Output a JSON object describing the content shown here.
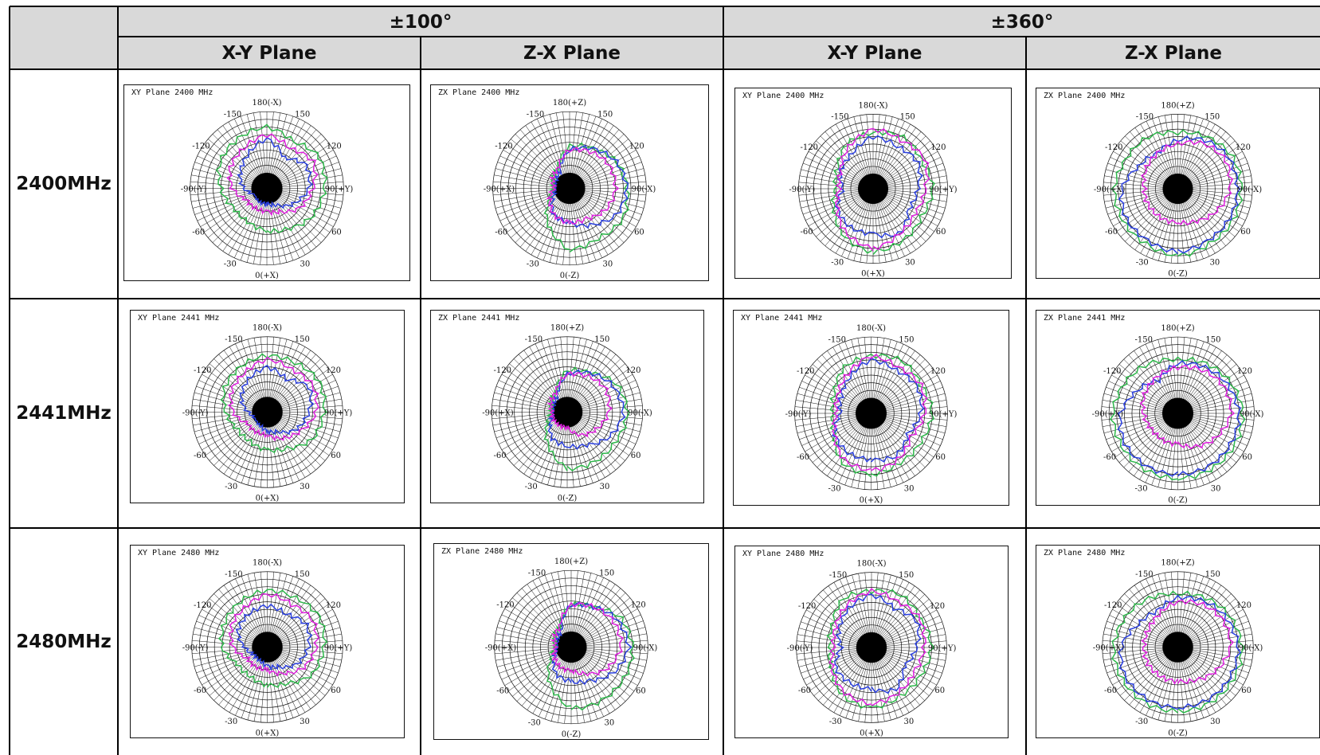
{
  "header": {
    "group_100": "±100°",
    "group_360": "±360°",
    "col_xy_1": "X-Y Plane",
    "col_zx_1": "Z-X Plane",
    "col_xy_2": "X-Y Plane",
    "col_zx_2": "Z-X Plane"
  },
  "rows": [
    "2400MHz",
    "2441MHz",
    "2480MHz"
  ],
  "colors": {
    "series_a": "#2db84a",
    "series_b": "#2a3fe0",
    "series_c": "#e020e0",
    "grid": "#111111",
    "border": "#000000"
  },
  "axis_labels": {
    "xy": {
      "top": "180(-X)",
      "bottom": "0(+X)",
      "left": "90(+Y)",
      "right": "-90(-Y)",
      "tl": "150",
      "tr": "-150",
      "ul": "120",
      "ur": "-120",
      "ll": "60",
      "lr": "-60",
      "bl": "30",
      "br": "-30"
    },
    "zx": {
      "top": "180(+Z)",
      "bottom": "0(-Z)",
      "left": "90(-X)",
      "right": "-90(+X)",
      "tl": "150",
      "tr": "-150",
      "ul": "120",
      "ur": "-120",
      "ll": "60",
      "lr": "-60",
      "bl": "30",
      "br": "-30"
    }
  },
  "chart_data": [
    {
      "type": "line",
      "plot": "polar",
      "title": "XY Plane 2400 MHz",
      "range": "±100°",
      "plane": "XY",
      "angles": [
        0,
        30,
        60,
        90,
        120,
        150,
        180,
        210,
        240,
        270,
        300,
        330
      ],
      "series": [
        {
          "values": [
            0.55,
            0.6,
            0.7,
            0.75,
            0.8,
            0.7,
            0.8,
            0.75,
            0.7,
            0.6,
            0.5,
            0.5
          ]
        },
        {
          "values": [
            0.2,
            0.25,
            0.4,
            0.55,
            0.6,
            0.45,
            0.65,
            0.5,
            0.4,
            0.3,
            0.15,
            0.2
          ]
        },
        {
          "values": [
            0.3,
            0.35,
            0.5,
            0.6,
            0.7,
            0.6,
            0.7,
            0.6,
            0.55,
            0.45,
            0.3,
            0.3
          ]
        }
      ]
    },
    {
      "type": "line",
      "plot": "polar",
      "title": "ZX Plane 2400 MHz",
      "range": "±100°",
      "plane": "ZX",
      "angles": [
        0,
        30,
        60,
        90,
        120,
        150,
        180,
        210,
        240,
        270,
        300,
        330
      ],
      "series": [
        {
          "values": [
            0.8,
            0.75,
            0.8,
            0.75,
            0.7,
            0.6,
            0.55,
            0.3,
            0.25,
            0.2,
            0.3,
            0.55
          ]
        },
        {
          "values": [
            0.45,
            0.55,
            0.7,
            0.75,
            0.7,
            0.6,
            0.5,
            0.25,
            0.2,
            0.15,
            0.25,
            0.4
          ]
        },
        {
          "values": [
            0.45,
            0.45,
            0.55,
            0.6,
            0.6,
            0.55,
            0.5,
            0.3,
            0.25,
            0.2,
            0.3,
            0.4
          ]
        }
      ]
    },
    {
      "type": "line",
      "plot": "polar",
      "title": "XY Plane 2400 MHz",
      "range": "±360°",
      "plane": "XY",
      "angles": [
        0,
        30,
        60,
        90,
        120,
        150,
        180,
        210,
        240,
        270,
        300,
        330
      ],
      "series": [
        {
          "values": [
            0.85,
            0.8,
            0.75,
            0.8,
            0.75,
            0.8,
            0.75,
            0.7,
            0.55,
            0.5,
            0.6,
            0.75
          ]
        },
        {
          "values": [
            0.6,
            0.7,
            0.55,
            0.6,
            0.7,
            0.65,
            0.7,
            0.55,
            0.5,
            0.4,
            0.55,
            0.6
          ]
        },
        {
          "values": [
            0.8,
            0.7,
            0.65,
            0.7,
            0.8,
            0.75,
            0.8,
            0.65,
            0.5,
            0.45,
            0.55,
            0.7
          ]
        }
      ]
    },
    {
      "type": "line",
      "plot": "polar",
      "title": "ZX Plane 2400 MHz",
      "range": "±360°",
      "plane": "ZX",
      "angles": [
        0,
        30,
        60,
        90,
        120,
        150,
        180,
        210,
        240,
        270,
        300,
        330
      ],
      "series": [
        {
          "values": [
            0.9,
            0.85,
            0.85,
            0.85,
            0.85,
            0.8,
            0.75,
            0.8,
            0.8,
            0.85,
            0.85,
            0.85
          ]
        },
        {
          "values": [
            0.85,
            0.8,
            0.8,
            0.8,
            0.8,
            0.75,
            0.65,
            0.55,
            0.6,
            0.75,
            0.8,
            0.8
          ]
        },
        {
          "values": [
            0.45,
            0.5,
            0.6,
            0.7,
            0.75,
            0.7,
            0.6,
            0.55,
            0.5,
            0.45,
            0.45,
            0.45
          ]
        }
      ]
    },
    {
      "type": "line",
      "plot": "polar",
      "title": "XY Plane 2441 MHz",
      "range": "±100°",
      "plane": "XY",
      "angles": [
        0,
        30,
        60,
        90,
        120,
        150,
        180,
        210,
        240,
        270,
        300,
        330
      ],
      "series": [
        {
          "values": [
            0.5,
            0.55,
            0.7,
            0.75,
            0.8,
            0.75,
            0.75,
            0.7,
            0.65,
            0.55,
            0.45,
            0.45
          ]
        },
        {
          "values": [
            0.25,
            0.3,
            0.45,
            0.55,
            0.65,
            0.5,
            0.6,
            0.5,
            0.4,
            0.25,
            0.15,
            0.2
          ]
        },
        {
          "values": [
            0.3,
            0.4,
            0.5,
            0.65,
            0.7,
            0.65,
            0.7,
            0.6,
            0.55,
            0.45,
            0.3,
            0.3
          ]
        }
      ]
    },
    {
      "type": "line",
      "plot": "polar",
      "title": "ZX Plane 2441 MHz",
      "range": "±100°",
      "plane": "ZX",
      "angles": [
        0,
        30,
        60,
        90,
        120,
        150,
        180,
        210,
        240,
        270,
        300,
        330
      ],
      "series": [
        {
          "values": [
            0.75,
            0.75,
            0.75,
            0.8,
            0.75,
            0.6,
            0.55,
            0.3,
            0.25,
            0.2,
            0.3,
            0.5
          ]
        },
        {
          "values": [
            0.45,
            0.5,
            0.65,
            0.75,
            0.7,
            0.6,
            0.5,
            0.25,
            0.2,
            0.15,
            0.25,
            0.4
          ]
        },
        {
          "values": [
            0.2,
            0.35,
            0.45,
            0.55,
            0.6,
            0.55,
            0.5,
            0.3,
            0.25,
            0.2,
            0.2,
            0.2
          ]
        }
      ]
    },
    {
      "type": "line",
      "plot": "polar",
      "title": "XY Plane 2441 MHz",
      "range": "±360°",
      "plane": "XY",
      "angles": [
        0,
        30,
        60,
        90,
        120,
        150,
        180,
        210,
        240,
        270,
        300,
        330
      ],
      "series": [
        {
          "values": [
            0.8,
            0.75,
            0.75,
            0.8,
            0.75,
            0.8,
            0.75,
            0.7,
            0.55,
            0.5,
            0.55,
            0.75
          ]
        },
        {
          "values": [
            0.6,
            0.65,
            0.55,
            0.65,
            0.7,
            0.65,
            0.7,
            0.55,
            0.45,
            0.4,
            0.55,
            0.6
          ]
        },
        {
          "values": [
            0.75,
            0.7,
            0.6,
            0.7,
            0.75,
            0.7,
            0.75,
            0.6,
            0.5,
            0.45,
            0.55,
            0.7
          ]
        }
      ]
    },
    {
      "type": "line",
      "plot": "polar",
      "title": "ZX Plane 2441 MHz",
      "range": "±360°",
      "plane": "ZX",
      "angles": [
        0,
        30,
        60,
        90,
        120,
        150,
        180,
        210,
        240,
        270,
        300,
        330
      ],
      "series": [
        {
          "values": [
            0.85,
            0.85,
            0.85,
            0.85,
            0.8,
            0.75,
            0.7,
            0.75,
            0.8,
            0.85,
            0.85,
            0.85
          ]
        },
        {
          "values": [
            0.8,
            0.8,
            0.8,
            0.8,
            0.75,
            0.7,
            0.65,
            0.5,
            0.6,
            0.75,
            0.8,
            0.8
          ]
        },
        {
          "values": [
            0.4,
            0.5,
            0.6,
            0.7,
            0.7,
            0.65,
            0.6,
            0.55,
            0.5,
            0.45,
            0.4,
            0.4
          ]
        }
      ]
    },
    {
      "type": "line",
      "plot": "polar",
      "title": "XY Plane 2480 MHz",
      "range": "±100°",
      "plane": "XY",
      "angles": [
        0,
        30,
        60,
        90,
        120,
        150,
        180,
        210,
        240,
        270,
        300,
        330
      ],
      "series": [
        {
          "values": [
            0.5,
            0.55,
            0.7,
            0.75,
            0.8,
            0.75,
            0.75,
            0.7,
            0.65,
            0.6,
            0.45,
            0.45
          ]
        },
        {
          "values": [
            0.25,
            0.3,
            0.45,
            0.55,
            0.6,
            0.5,
            0.55,
            0.5,
            0.45,
            0.3,
            0.2,
            0.2
          ]
        },
        {
          "values": [
            0.3,
            0.4,
            0.55,
            0.65,
            0.7,
            0.65,
            0.7,
            0.6,
            0.55,
            0.45,
            0.3,
            0.3
          ]
        }
      ]
    },
    {
      "type": "line",
      "plot": "polar",
      "title": "ZX Plane 2480 MHz",
      "range": "±100°",
      "plane": "ZX",
      "angles": [
        0,
        30,
        60,
        90,
        120,
        150,
        180,
        210,
        240,
        270,
        300,
        330
      ],
      "series": [
        {
          "values": [
            0.8,
            0.8,
            0.8,
            0.8,
            0.75,
            0.6,
            0.55,
            0.3,
            0.25,
            0.2,
            0.3,
            0.55
          ]
        },
        {
          "values": [
            0.45,
            0.5,
            0.65,
            0.75,
            0.7,
            0.6,
            0.55,
            0.25,
            0.2,
            0.15,
            0.25,
            0.4
          ]
        },
        {
          "values": [
            0.3,
            0.4,
            0.55,
            0.65,
            0.65,
            0.6,
            0.55,
            0.3,
            0.25,
            0.2,
            0.25,
            0.3
          ]
        }
      ]
    },
    {
      "type": "line",
      "plot": "polar",
      "title": "XY Plane 2480 MHz",
      "range": "±360°",
      "plane": "XY",
      "angles": [
        0,
        30,
        60,
        90,
        120,
        150,
        180,
        210,
        240,
        270,
        300,
        330
      ],
      "series": [
        {
          "values": [
            0.8,
            0.75,
            0.75,
            0.8,
            0.75,
            0.8,
            0.75,
            0.75,
            0.6,
            0.55,
            0.6,
            0.75
          ]
        },
        {
          "values": [
            0.55,
            0.65,
            0.5,
            0.6,
            0.7,
            0.6,
            0.7,
            0.6,
            0.5,
            0.4,
            0.55,
            0.55
          ]
        },
        {
          "values": [
            0.75,
            0.7,
            0.65,
            0.7,
            0.75,
            0.7,
            0.75,
            0.65,
            0.55,
            0.5,
            0.6,
            0.7
          ]
        }
      ]
    },
    {
      "type": "line",
      "plot": "polar",
      "title": "ZX Plane 2480 MHz",
      "range": "±360°",
      "plane": "ZX",
      "angles": [
        0,
        30,
        60,
        90,
        120,
        150,
        180,
        210,
        240,
        270,
        300,
        330
      ],
      "series": [
        {
          "values": [
            0.85,
            0.85,
            0.85,
            0.85,
            0.8,
            0.75,
            0.7,
            0.75,
            0.8,
            0.85,
            0.85,
            0.85
          ]
        },
        {
          "values": [
            0.8,
            0.8,
            0.8,
            0.8,
            0.75,
            0.7,
            0.65,
            0.55,
            0.6,
            0.75,
            0.8,
            0.8
          ]
        },
        {
          "values": [
            0.45,
            0.5,
            0.6,
            0.7,
            0.7,
            0.65,
            0.6,
            0.5,
            0.45,
            0.45,
            0.45,
            0.45
          ]
        }
      ]
    }
  ]
}
